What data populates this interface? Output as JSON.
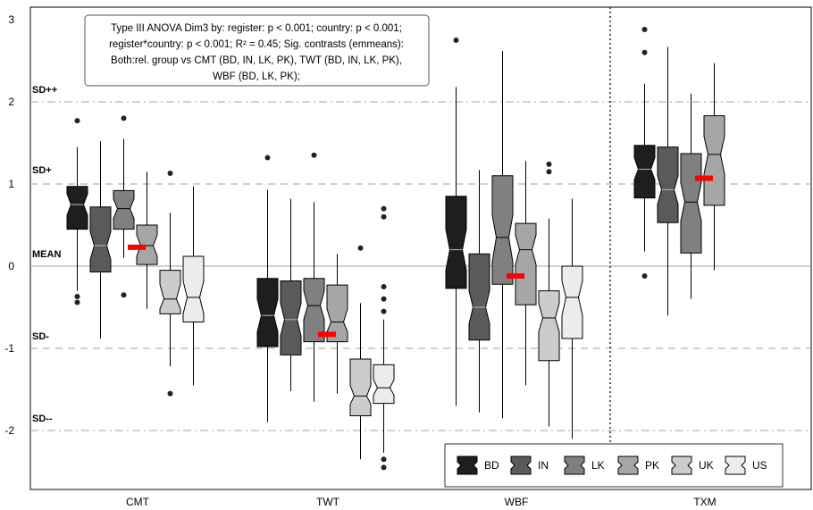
{
  "chart_data": {
    "type": "boxplot",
    "y_ticks": [
      "3",
      "2",
      "1",
      "0",
      "-1",
      "-2"
    ],
    "ylim": [
      -2.75,
      3.1
    ],
    "categories": [
      "CMT",
      "TWT",
      "WBF",
      "TXM"
    ],
    "sd_lines": [
      {
        "label": "SD++",
        "value": 2,
        "style": "dash-dot"
      },
      {
        "label": "SD+",
        "value": 1,
        "style": "dash"
      },
      {
        "label": "MEAN",
        "value": 0,
        "style": "solid"
      },
      {
        "label": "SD-",
        "value": -1,
        "style": "dash"
      },
      {
        "label": "SD--",
        "value": -2,
        "style": "dash-dot"
      }
    ],
    "annotation_lines": [
      "Type III ANOVA Dim3 by: register: p < 0.001; country: p < 0.001;",
      "register*country: p < 0.001; R² = 0.45; Sig. contrasts (emmeans):",
      "Both:rel. group vs CMT (BD, IN, LK, PK), TWT (BD, IN, LK, PK),",
      "WBF (BD, LK, PK);"
    ],
    "legend_position": "bottom-right",
    "series": [
      {
        "name": "BD",
        "color": "#1e1e1e"
      },
      {
        "name": "IN",
        "color": "#5a5a5a"
      },
      {
        "name": "LK",
        "color": "#808080"
      },
      {
        "name": "PK",
        "color": "#a6a6a6"
      },
      {
        "name": "UK",
        "color": "#cccccc"
      },
      {
        "name": "US",
        "color": "#ececec"
      }
    ],
    "groups": [
      {
        "category": "CMT",
        "boxes": [
          {
            "series": "BD",
            "min": -0.3,
            "q1": 0.45,
            "median": 0.75,
            "q3": 0.97,
            "max": 1.45,
            "notch": [
              0.62,
              0.88
            ],
            "outliers": [
              1.77,
              -0.37,
              -0.44
            ]
          },
          {
            "series": "IN",
            "min": -0.88,
            "q1": -0.07,
            "median": 0.25,
            "q3": 0.72,
            "max": 1.52,
            "notch": [
              0.08,
              0.42
            ],
            "outliers": []
          },
          {
            "series": "LK",
            "min": 0.1,
            "q1": 0.45,
            "median": 0.7,
            "q3": 0.92,
            "max": 1.55,
            "notch": [
              0.58,
              0.82
            ],
            "outliers": [
              1.8,
              -0.35
            ]
          },
          {
            "series": "PK",
            "min": -0.52,
            "q1": 0.02,
            "median": 0.25,
            "q3": 0.5,
            "max": 1.15,
            "notch": [
              0.12,
              0.38
            ],
            "outliers": []
          },
          {
            "series": "UK",
            "min": -1.22,
            "q1": -0.58,
            "median": -0.4,
            "q3": -0.05,
            "max": 0.65,
            "notch": [
              -0.52,
              -0.22
            ],
            "outliers": [
              1.13,
              -1.55
            ]
          },
          {
            "series": "US",
            "min": -1.45,
            "q1": -0.68,
            "median": -0.38,
            "q3": 0.12,
            "max": 0.97,
            "notch": [
              -0.58,
              -0.18
            ],
            "outliers": []
          }
        ],
        "mean_marker": 0.23
      },
      {
        "category": "TWT",
        "boxes": [
          {
            "series": "BD",
            "min": -1.9,
            "q1": -0.98,
            "median": -0.6,
            "q3": -0.15,
            "max": 0.93,
            "notch": [
              -0.8,
              -0.4
            ],
            "outliers": [
              1.32
            ]
          },
          {
            "series": "IN",
            "min": -1.52,
            "q1": -1.08,
            "median": -0.65,
            "q3": -0.18,
            "max": 0.82,
            "notch": [
              -0.85,
              -0.45
            ],
            "outliers": []
          },
          {
            "series": "LK",
            "min": -1.65,
            "q1": -0.92,
            "median": -0.48,
            "q3": -0.15,
            "max": 0.78,
            "notch": [
              -0.65,
              -0.3
            ],
            "outliers": [
              1.35
            ]
          },
          {
            "series": "PK",
            "min": -1.55,
            "q1": -0.92,
            "median": -0.68,
            "q3": -0.23,
            "max": 0.15,
            "notch": [
              -0.8,
              -0.52
            ],
            "outliers": []
          },
          {
            "series": "UK",
            "min": -2.35,
            "q1": -1.82,
            "median": -1.58,
            "q3": -1.13,
            "max": -0.45,
            "notch": [
              -1.68,
              -1.45
            ],
            "outliers": [
              0.22
            ]
          },
          {
            "series": "US",
            "min": -2.27,
            "q1": -1.67,
            "median": -1.48,
            "q3": -1.2,
            "max": -0.65,
            "notch": [
              -1.57,
              -1.38
            ],
            "outliers": [
              0.7,
              0.6,
              -0.25,
              -0.4,
              -0.55,
              -2.35,
              -2.45
            ]
          }
        ],
        "mean_marker": -0.83
      },
      {
        "category": "WBF",
        "boxes": [
          {
            "series": "BD",
            "min": -1.7,
            "q1": -0.27,
            "median": 0.2,
            "q3": 0.85,
            "max": 2.18,
            "notch": [
              -0.05,
              0.45
            ],
            "outliers": [
              2.75
            ]
          },
          {
            "series": "IN",
            "min": -1.78,
            "q1": -0.9,
            "median": -0.5,
            "q3": 0.15,
            "max": 1.17,
            "notch": [
              -0.7,
              -0.3
            ],
            "outliers": []
          },
          {
            "series": "LK",
            "min": -1.85,
            "q1": -0.22,
            "median": 0.35,
            "q3": 1.1,
            "max": 2.62,
            "notch": [
              0.05,
              0.62
            ],
            "outliers": []
          },
          {
            "series": "PK",
            "min": -1.45,
            "q1": -0.47,
            "median": 0.2,
            "q3": 0.52,
            "max": 1.28,
            "notch": [
              0.02,
              0.38
            ],
            "outliers": []
          },
          {
            "series": "UK",
            "min": -1.95,
            "q1": -1.15,
            "median": -0.63,
            "q3": -0.3,
            "max": 0.58,
            "notch": [
              -0.8,
              -0.45
            ],
            "outliers": [
              1.24,
              1.15
            ]
          },
          {
            "series": "US",
            "min": -2.1,
            "q1": -0.88,
            "median": -0.38,
            "q3": 0.0,
            "max": 0.82,
            "notch": [
              -0.6,
              -0.18
            ],
            "outliers": []
          }
        ],
        "mean_marker": -0.12
      },
      {
        "category": "TXM",
        "boxes": [
          {
            "series": "BD",
            "min": 0.18,
            "q1": 0.83,
            "median": 1.18,
            "q3": 1.47,
            "max": 2.22,
            "notch": [
              1.05,
              1.32
            ],
            "outliers": [
              2.88,
              2.6,
              -0.12
            ]
          },
          {
            "series": "IN",
            "min": -0.6,
            "q1": 0.53,
            "median": 0.93,
            "q3": 1.45,
            "max": 2.67,
            "notch": [
              0.75,
              1.1
            ],
            "outliers": []
          },
          {
            "series": "LK",
            "min": -0.4,
            "q1": 0.16,
            "median": 0.78,
            "q3": 1.37,
            "max": 2.1,
            "notch": [
              0.55,
              1.02
            ],
            "outliers": []
          },
          {
            "series": "PK",
            "min": -0.05,
            "q1": 0.74,
            "median": 1.36,
            "q3": 1.83,
            "max": 2.47,
            "notch": [
              1.12,
              1.58
            ],
            "outliers": []
          }
        ],
        "mean_marker": 1.07
      }
    ]
  }
}
